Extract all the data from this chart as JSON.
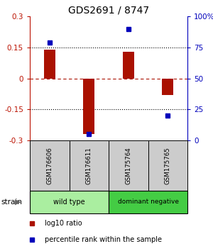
{
  "title": "GDS2691 / 8747",
  "samples": [
    "GSM176606",
    "GSM176611",
    "GSM175764",
    "GSM175765"
  ],
  "log10_ratio": [
    0.14,
    -0.27,
    0.13,
    -0.08
  ],
  "percentile_rank": [
    79,
    5,
    90,
    20
  ],
  "ylim_left": [
    -0.3,
    0.3
  ],
  "ylim_right": [
    0,
    100
  ],
  "yticks_left": [
    -0.3,
    -0.15,
    0,
    0.15,
    0.3
  ],
  "yticks_right": [
    0,
    25,
    50,
    75,
    100
  ],
  "ytick_labels_left": [
    "-0.3",
    "-0.15",
    "0",
    "0.15",
    "0.3"
  ],
  "ytick_labels_right": [
    "0",
    "25",
    "50",
    "75",
    "100%"
  ],
  "bar_color": "#aa1100",
  "dot_color": "#0000bb",
  "groups": [
    {
      "label": "wild type",
      "columns": [
        0,
        1
      ],
      "color": "#aaeea0"
    },
    {
      "label": "dominant negative",
      "columns": [
        2,
        3
      ],
      "color": "#44cc44"
    }
  ],
  "strain_label": "strain",
  "legend_ratio_label": "log10 ratio",
  "legend_pct_label": "percentile rank within the sample",
  "title_color": "#000000",
  "left_axis_color": "#bb1100",
  "right_axis_color": "#0000bb",
  "label_bg_color": "#cccccc",
  "plot_bg_color": "#ffffff"
}
